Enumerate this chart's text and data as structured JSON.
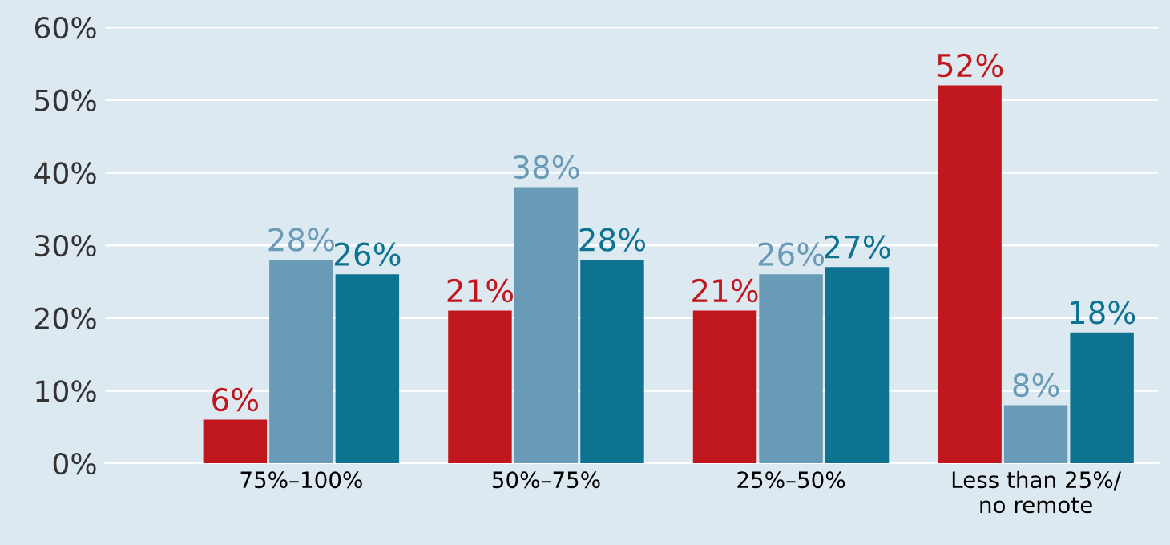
{
  "chart_data": {
    "type": "bar",
    "categories": [
      "75%–100%",
      "50%–75%",
      "25%–50%",
      "Less than 25%/\nno remote"
    ],
    "series": [
      {
        "color": "#c0161e",
        "values": [
          6,
          21,
          21,
          52
        ],
        "value_labels": [
          "6%",
          "21%",
          "21%",
          "52%"
        ]
      },
      {
        "color": "#6a9bb6",
        "values": [
          28,
          38,
          26,
          8
        ],
        "value_labels": [
          "28%",
          "38%",
          "26%",
          "8%"
        ]
      },
      {
        "color": "#0e7391",
        "values": [
          26,
          28,
          27,
          18
        ],
        "value_labels": [
          "26%",
          "28%",
          "27%",
          "18%"
        ]
      }
    ],
    "ylim": [
      0,
      60
    ],
    "yticks": [
      {
        "value": 0,
        "label": "0%"
      },
      {
        "value": 10,
        "label": "10%"
      },
      {
        "value": 20,
        "label": "20%"
      },
      {
        "value": 30,
        "label": "30%"
      },
      {
        "value": 40,
        "label": "40%"
      },
      {
        "value": 50,
        "label": "50%"
      },
      {
        "value": 60,
        "label": "60%"
      }
    ],
    "grid": "y",
    "legend": false
  }
}
